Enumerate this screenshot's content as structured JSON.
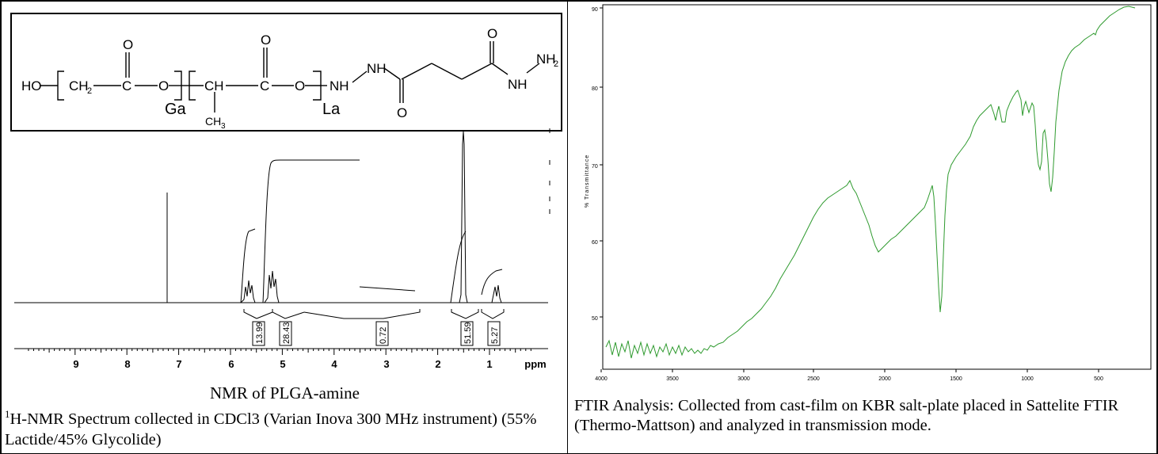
{
  "left_panel": {
    "structure": {
      "ho": "HO",
      "ch2": "CH",
      "ch2_sub": "2",
      "c1": "C",
      "o_carbonyl_1": "O",
      "o_ester_1": "O",
      "ch": "CH",
      "c2": "C",
      "o_carbonyl_2": "O",
      "o_ester_2": "O",
      "ch3": "CH",
      "ch3_sub": "3",
      "ga": "Ga",
      "la": "La",
      "nh1": "NH",
      "nh2": "NH",
      "o_amide_1": "O",
      "o_amide_2": "O",
      "nh3": "NH",
      "nh2_end": "NH",
      "nh2_end_sub": "2"
    },
    "nmr": {
      "ppm_label": "ppm",
      "ticks": [
        "9",
        "8",
        "7",
        "6",
        "5",
        "4",
        "3",
        "2",
        "1"
      ],
      "integrals": [
        "13.99",
        "28.43",
        "0.72",
        "51.59",
        "5.27"
      ]
    },
    "caption_title": "NMR of PLGA-amine",
    "caption_sup": "1",
    "caption_body": "H-NMR Spectrum collected in CDCl3 (Varian Inova 300 MHz instrument) (55% Lactide/45% Glycolide)"
  },
  "right_panel": {
    "ftir": {
      "y_axis_title": "% Transmittance",
      "y_ticks": [
        "90",
        "80",
        "70",
        "60",
        "50"
      ],
      "x_ticks": [
        "4000",
        "3500",
        "3000",
        "2500",
        "2000",
        "1500",
        "1000",
        "500"
      ],
      "line_color": "#2e9a2e"
    },
    "caption": "FTIR Analysis: Collected from cast-film on KBR salt-plate placed in Sattelite FTIR (Thermo-Mattson) and analyzed in transmission mode."
  }
}
